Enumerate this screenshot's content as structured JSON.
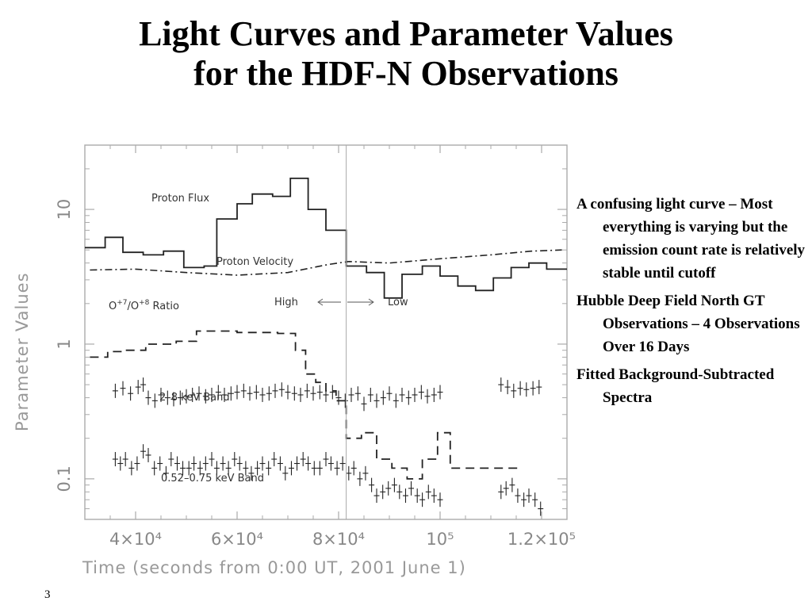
{
  "title": {
    "line1": "Light Curves and Parameter Values",
    "line2": "for the HDF-N Observations"
  },
  "bullets": [
    "A confusing light curve – Most everything is varying but the emission count rate is relatively stable until cutoff",
    "Hubble Deep Field North GT Observations – 4 Observations Over 16 Days",
    "Fitted Background-Subtracted Spectra"
  ],
  "page_number": "3",
  "chart_data": {
    "type": "line",
    "xlabel": "Time (seconds from 0:00 UT, 2001 June 1)",
    "ylabel": "Parameter Values",
    "xlim": [
      30000,
      125000
    ],
    "ylim": [
      0.05,
      30
    ],
    "y_scale": "log",
    "x_ticks": [
      "4×10⁴",
      "6×10⁴",
      "8×10⁴",
      "10⁵",
      "1.2×10⁵"
    ],
    "y_ticks": [
      "0.1",
      "1",
      "10"
    ],
    "annotations": {
      "proton_flux": "Proton Flux",
      "proton_velocity": "Proton Velocity",
      "ratio": "O+7/O+8 Ratio",
      "band_2_8": "2–8 keV Band",
      "band_052_075": "0.52–0.75 keV Band",
      "high_label": "High",
      "low_label": "Low"
    },
    "divider_x": 81500,
    "series": [
      {
        "name": "Proton Flux",
        "style": "step",
        "x": [
          30000,
          34000,
          37500,
          41500,
          45500,
          49500,
          53500,
          56000,
          60000,
          63000,
          67000,
          70500,
          74000,
          77500,
          81500,
          85500,
          89000,
          92500,
          96500,
          100000,
          103500,
          107000,
          110500,
          114000,
          117500,
          121000,
          125000
        ],
        "y": [
          5.2,
          6.2,
          4.8,
          4.6,
          4.9,
          3.7,
          3.8,
          8.5,
          11,
          13,
          12.5,
          17,
          10,
          7,
          3.8,
          3.4,
          2.2,
          3.3,
          3.8,
          3.2,
          2.7,
          2.5,
          3.1,
          3.7,
          4.0,
          3.6,
          3.6
        ]
      },
      {
        "name": "Proton Velocity",
        "style": "dashdot",
        "x": [
          31000,
          40000,
          50000,
          60000,
          70000,
          78000,
          82000,
          90000,
          100000,
          110000,
          118000,
          124000
        ],
        "y": [
          3.55,
          3.6,
          3.4,
          3.25,
          3.4,
          3.9,
          4.1,
          4.0,
          4.3,
          4.6,
          4.9,
          5.0
        ]
      },
      {
        "name": "O+7/O+8 Ratio",
        "style": "dashed-step",
        "x": [
          31000,
          34500,
          38000,
          42000,
          45000,
          48000,
          52000,
          56000,
          60000,
          64000,
          68000,
          71500,
          73500,
          75500,
          77500,
          79500,
          81500,
          84500,
          87500,
          90500,
          93500,
          96500,
          99500,
          102000,
          105500,
          109000,
          112500,
          115500
        ],
        "y": [
          0.8,
          0.88,
          0.9,
          1.0,
          1.0,
          1.05,
          1.25,
          1.25,
          1.22,
          1.22,
          1.2,
          0.9,
          0.6,
          0.52,
          0.45,
          0.38,
          0.2,
          0.22,
          0.14,
          0.12,
          0.1,
          0.14,
          0.22,
          0.12,
          0.12,
          0.12,
          0.12,
          0.12
        ]
      },
      {
        "name": "2–8 keV Band",
        "style": "crosses",
        "x": [
          36000,
          37500,
          39000,
          40500,
          41500,
          42500,
          43800,
          45000,
          46300,
          47500,
          48800,
          50000,
          51200,
          52500,
          53800,
          55000,
          56300,
          57500,
          58800,
          60000,
          61300,
          62500,
          63800,
          65000,
          66300,
          67500,
          68800,
          70000,
          71300,
          72500,
          73800,
          75000,
          76300,
          77500,
          78800,
          80000,
          81300,
          82500,
          83800,
          85000,
          86300,
          87500,
          88800,
          90000,
          91300,
          92500,
          93800,
          95000,
          96300,
          97500,
          98800,
          100000,
          112000,
          113300,
          114500,
          115800,
          117000,
          118300,
          119500
        ],
        "y": [
          0.45,
          0.47,
          0.43,
          0.48,
          0.5,
          0.4,
          0.38,
          0.42,
          0.4,
          0.39,
          0.4,
          0.41,
          0.42,
          0.43,
          0.41,
          0.42,
          0.44,
          0.42,
          0.43,
          0.44,
          0.45,
          0.43,
          0.44,
          0.42,
          0.43,
          0.45,
          0.46,
          0.44,
          0.43,
          0.42,
          0.45,
          0.43,
          0.44,
          0.42,
          0.44,
          0.4,
          0.38,
          0.42,
          0.43,
          0.36,
          0.42,
          0.38,
          0.4,
          0.43,
          0.38,
          0.42,
          0.4,
          0.42,
          0.44,
          0.41,
          0.42,
          0.44,
          0.5,
          0.48,
          0.45,
          0.47,
          0.46,
          0.47,
          0.48
        ]
      },
      {
        "name": "0.52–0.75 keV Band",
        "style": "crosses",
        "x": [
          36000,
          37000,
          38000,
          39200,
          40300,
          41500,
          42500,
          43700,
          44800,
          46000,
          47000,
          48200,
          49300,
          50500,
          51500,
          52700,
          53800,
          55000,
          56000,
          57200,
          58300,
          59500,
          60500,
          61700,
          62800,
          64000,
          65000,
          66200,
          67300,
          68500,
          69500,
          70700,
          71800,
          73000,
          74000,
          75200,
          76300,
          77500,
          78500,
          79700,
          80800,
          82000,
          83000,
          84200,
          85300,
          86500,
          87500,
          88700,
          89800,
          91000,
          92000,
          93200,
          94300,
          95500,
          96500,
          97700,
          98800,
          100000,
          112000,
          113000,
          114200,
          115300,
          116500,
          117500,
          118700,
          119800
        ],
        "y": [
          0.14,
          0.13,
          0.14,
          0.12,
          0.13,
          0.16,
          0.15,
          0.12,
          0.13,
          0.11,
          0.14,
          0.13,
          0.12,
          0.12,
          0.13,
          0.12,
          0.13,
          0.14,
          0.12,
          0.13,
          0.12,
          0.14,
          0.13,
          0.12,
          0.11,
          0.12,
          0.13,
          0.12,
          0.14,
          0.13,
          0.11,
          0.12,
          0.13,
          0.14,
          0.13,
          0.12,
          0.12,
          0.14,
          0.13,
          0.12,
          0.13,
          0.11,
          0.12,
          0.1,
          0.11,
          0.09,
          0.075,
          0.08,
          0.085,
          0.09,
          0.08,
          0.075,
          0.085,
          0.075,
          0.07,
          0.08,
          0.075,
          0.07,
          0.08,
          0.085,
          0.09,
          0.075,
          0.07,
          0.075,
          0.07,
          0.06
        ]
      }
    ]
  }
}
